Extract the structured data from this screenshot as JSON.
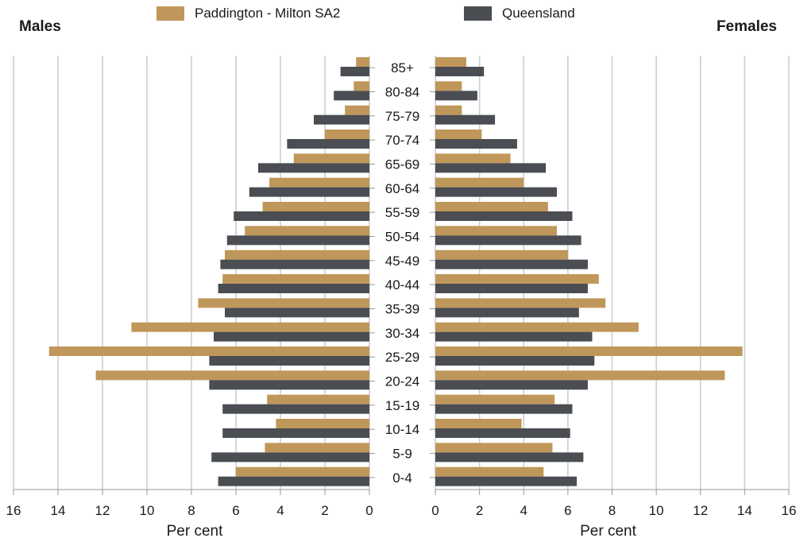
{
  "chart_data": {
    "type": "bar",
    "orientation": "horizontal",
    "layout": "population-pyramid",
    "left_title": "Males",
    "right_title": "Females",
    "xlabel": "Per cent",
    "xlim": [
      0,
      16
    ],
    "xticks": [
      0,
      2,
      4,
      6,
      8,
      10,
      12,
      14,
      16
    ],
    "grid": true,
    "legend_position": "top",
    "categories": [
      "0-4",
      "5-9",
      "10-14",
      "15-19",
      "20-24",
      "25-29",
      "30-34",
      "35-39",
      "40-44",
      "45-49",
      "50-54",
      "55-59",
      "60-64",
      "65-69",
      "70-74",
      "75-79",
      "80-84",
      "85+"
    ],
    "series": [
      {
        "name": "Paddington - Milton SA2",
        "color": "#c0975a",
        "males": [
          6.0,
          4.7,
          4.2,
          4.6,
          12.3,
          14.4,
          10.7,
          7.7,
          6.6,
          6.5,
          5.6,
          4.8,
          4.5,
          3.4,
          2.0,
          1.1,
          0.7,
          0.6
        ],
        "females": [
          4.9,
          5.3,
          3.9,
          5.4,
          13.1,
          13.9,
          9.2,
          7.7,
          7.4,
          6.0,
          5.5,
          5.1,
          4.0,
          3.4,
          2.1,
          1.2,
          1.2,
          1.4
        ]
      },
      {
        "name": "Queensland",
        "color": "#4a4d52",
        "males": [
          6.8,
          7.1,
          6.6,
          6.6,
          7.2,
          7.2,
          7.0,
          6.5,
          6.8,
          6.7,
          6.4,
          6.1,
          5.4,
          5.0,
          3.7,
          2.5,
          1.6,
          1.3
        ],
        "females": [
          6.4,
          6.7,
          6.1,
          6.2,
          6.9,
          7.2,
          7.1,
          6.5,
          6.9,
          6.9,
          6.6,
          6.2,
          5.5,
          5.0,
          3.7,
          2.7,
          1.9,
          2.2
        ]
      }
    ]
  }
}
